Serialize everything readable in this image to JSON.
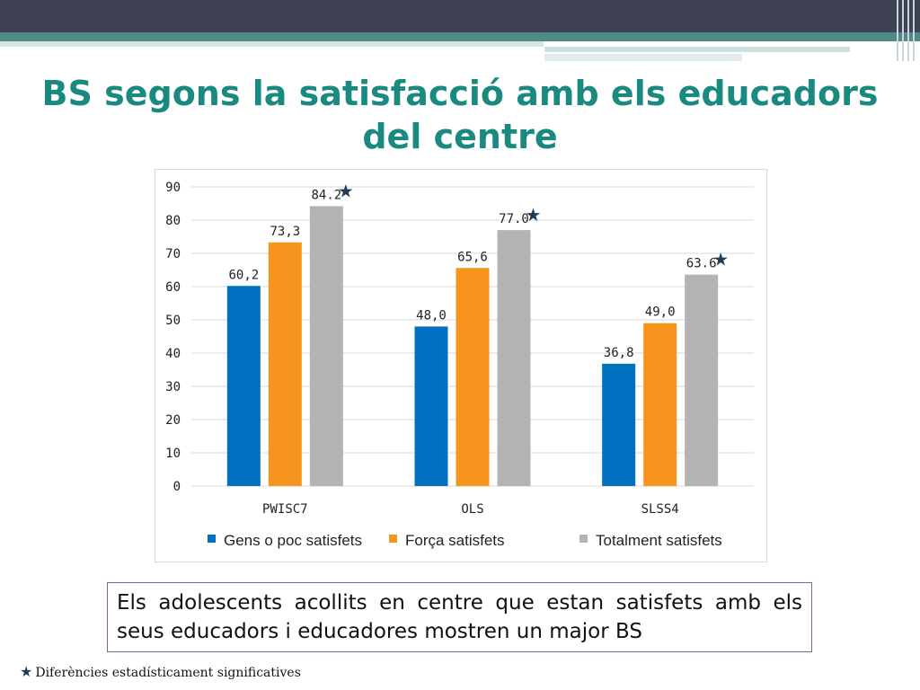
{
  "title": "BS segons la satisfacció amb els educadors del centre",
  "note": "Els adolescents acollits en centre que estan satisfets amb els seus educadors i educadores mostren un major BS",
  "footnote": "Diferències estadísticament significatives",
  "colors": {
    "header_dark": "#3f4255",
    "header_teal": "#4f8a88",
    "title": "#1a8a80",
    "series": [
      "#0070c0",
      "#f7941d",
      "#b3b3b3"
    ],
    "star": "#1f3c5a"
  },
  "chart_data": {
    "type": "bar",
    "categories": [
      "PWISC7",
      "OLS",
      "SLSS4"
    ],
    "series": [
      {
        "name": "Gens o poc satisfets",
        "values": [
          60.2,
          48.0,
          36.8
        ],
        "labels": [
          "60,2",
          "48,0",
          "36,8"
        ]
      },
      {
        "name": "Força satisfets",
        "values": [
          73.3,
          65.6,
          49.0
        ],
        "labels": [
          "73,3",
          "65,6",
          "49,0"
        ]
      },
      {
        "name": "Totalment satisfets",
        "values": [
          84.2,
          77.0,
          63.6
        ],
        "labels": [
          "84.2",
          "77.0",
          "63.6"
        ]
      }
    ],
    "significant": [
      true,
      true,
      true
    ],
    "ylim": [
      0,
      90
    ],
    "yticks": [
      0,
      10,
      20,
      30,
      40,
      50,
      60,
      70,
      80,
      90
    ],
    "grid": true,
    "legend": "bottom"
  }
}
